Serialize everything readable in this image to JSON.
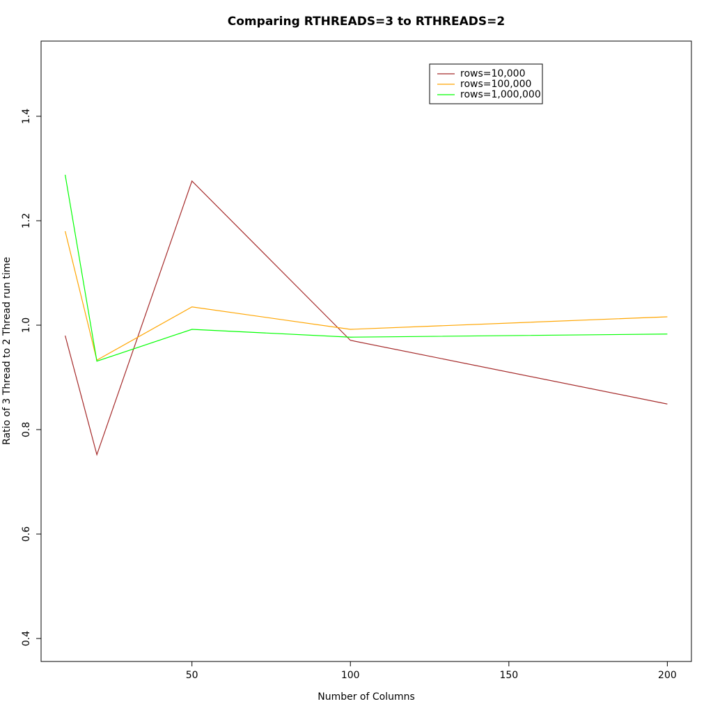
{
  "chart_data": {
    "type": "line",
    "title": "Comparing RTHREADS=3 to RTHREADS=2",
    "x_label": "Number of Columns",
    "y_label": "Ratio of 3 Thread to 2 Thread run time",
    "x": [
      10,
      20,
      50,
      100,
      200
    ],
    "series": [
      {
        "name": "rows=10,000",
        "color": "#a52a2a",
        "values": [
          0.98,
          0.752,
          1.276,
          0.971,
          0.849
        ]
      },
      {
        "name": "rows=100,000",
        "color": "#ffa500",
        "values": [
          1.18,
          0.933,
          1.035,
          0.992,
          1.016
        ]
      },
      {
        "name": "rows=1,000,000",
        "color": "#00ff00",
        "values": [
          1.288,
          0.931,
          0.992,
          0.977,
          0.983
        ]
      }
    ],
    "xlim": [
      2.4,
      207.6
    ],
    "xticks": [
      50,
      100,
      150,
      200
    ],
    "ylim": [
      0.356,
      1.544
    ],
    "yticks": [
      0.4,
      0.6,
      0.8,
      {
        "value": 1,
        "label": "1.0"
      },
      1.2,
      1.4
    ],
    "grid": false
  }
}
